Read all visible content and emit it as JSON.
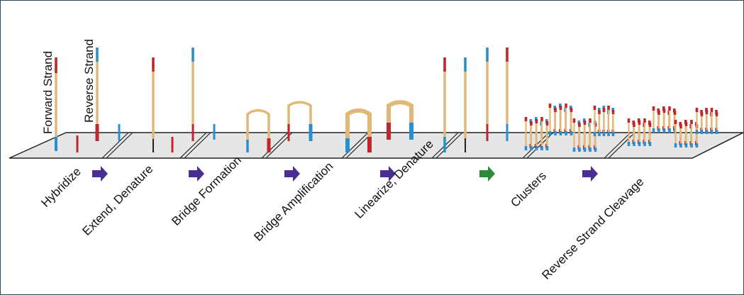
{
  "strand_labels": {
    "forward": "Forward Strand",
    "reverse": "Reverse Strand"
  },
  "steps": [
    {
      "label": "Hybridize"
    },
    {
      "label": "Extend, Denature"
    },
    {
      "label": "Bridge Formation"
    },
    {
      "label": "Bridge Amplification"
    },
    {
      "label": "Linearize, Denature"
    },
    {
      "label": "Clusters"
    },
    {
      "label": "Reverse Strand Cleavage"
    }
  ],
  "arrows": [
    {
      "color": "#4b2e92"
    },
    {
      "color": "#4b2e92"
    },
    {
      "color": "#4b2e92"
    },
    {
      "color": "#4b2e92"
    },
    {
      "color": "#2e8b3a"
    },
    {
      "color": "#4b2e92"
    }
  ],
  "colors": {
    "strand": "#e2b878",
    "forward_tip": "#c0262d",
    "reverse_tip": "#2a8fd0",
    "slide": "#e6e6e6",
    "slide_edge": "#222222",
    "frame": "#2f4a5f"
  }
}
